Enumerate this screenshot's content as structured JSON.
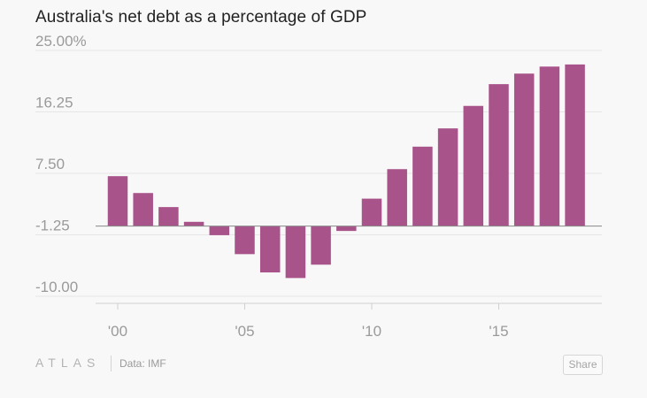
{
  "chart_data": {
    "type": "bar",
    "title": "Australia's net debt as a percentage of GDP",
    "xlabel": "",
    "ylabel": "",
    "ylim": [
      -10,
      25
    ],
    "y_ticks": [
      {
        "value": 25,
        "label": "25.00%"
      },
      {
        "value": 16.25,
        "label": "16.25"
      },
      {
        "value": 7.5,
        "label": "7.50"
      },
      {
        "value": -1.25,
        "label": "-1.25"
      },
      {
        "value": -10,
        "label": "-10.00"
      }
    ],
    "x_ticks": [
      {
        "value": 2000,
        "label": "'00"
      },
      {
        "value": 2005,
        "label": "'05"
      },
      {
        "value": 2010,
        "label": "'10"
      },
      {
        "value": 2015,
        "label": "'15"
      }
    ],
    "categories": [
      2000,
      2001,
      2002,
      2003,
      2004,
      2005,
      2006,
      2007,
      2008,
      2009,
      2010,
      2011,
      2012,
      2013,
      2014,
      2015,
      2016,
      2017,
      2018
    ],
    "values": [
      7.1,
      4.7,
      2.7,
      0.6,
      -1.3,
      -4.0,
      -6.6,
      -7.4,
      -5.5,
      -0.7,
      3.9,
      8.1,
      11.3,
      13.9,
      17.1,
      20.2,
      21.7,
      22.7,
      23.0
    ],
    "bar_color": "#a8548a",
    "grid": true,
    "legend": "none"
  },
  "footer": {
    "logo": "ATLAS",
    "source": "Data: IMF",
    "share_label": "Share"
  }
}
